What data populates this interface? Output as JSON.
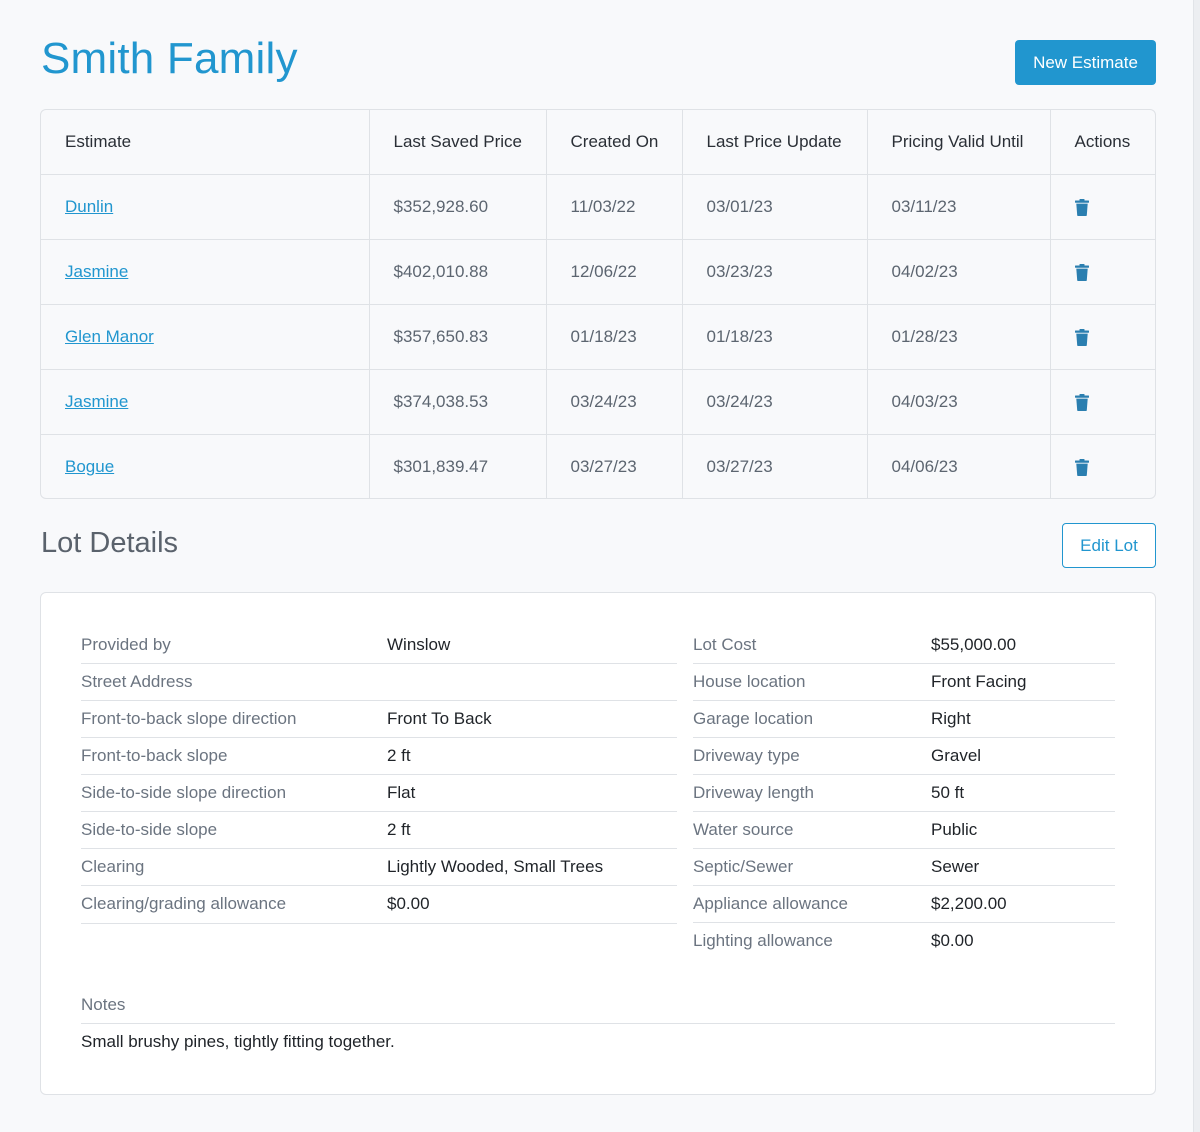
{
  "header": {
    "title": "Smith Family",
    "new_estimate_label": "New Estimate"
  },
  "estimates": {
    "columns": [
      "Estimate",
      "Last Saved Price",
      "Created On",
      "Last Price Update",
      "Pricing Valid Until",
      "Actions"
    ],
    "rows": [
      {
        "name": "Dunlin",
        "price": "$352,928.60",
        "created": "11/03/22",
        "updated": "03/01/23",
        "valid": "03/11/23"
      },
      {
        "name": "Jasmine",
        "price": "$402,010.88",
        "created": "12/06/22",
        "updated": "03/23/23",
        "valid": "04/02/23"
      },
      {
        "name": "Glen Manor",
        "price": "$357,650.83",
        "created": "01/18/23",
        "updated": "01/18/23",
        "valid": "01/28/23"
      },
      {
        "name": "Jasmine",
        "price": "$374,038.53",
        "created": "03/24/23",
        "updated": "03/24/23",
        "valid": "04/03/23"
      },
      {
        "name": "Bogue",
        "price": "$301,839.47",
        "created": "03/27/23",
        "updated": "03/27/23",
        "valid": "04/06/23"
      }
    ],
    "action_icon": "trash-icon"
  },
  "lot": {
    "title": "Lot Details",
    "edit_label": "Edit Lot",
    "left": [
      {
        "label": "Provided by",
        "value": "Winslow"
      },
      {
        "label": "Street Address",
        "value": ""
      },
      {
        "label": "Front-to-back slope direction",
        "value": "Front To Back"
      },
      {
        "label": "Front-to-back slope",
        "value": "2 ft"
      },
      {
        "label": "Side-to-side slope direction",
        "value": "Flat"
      },
      {
        "label": "Side-to-side slope",
        "value": "2 ft"
      },
      {
        "label": "Clearing",
        "value": "Lightly Wooded, Small Trees"
      },
      {
        "label": "Clearing/grading allowance",
        "value": "$0.00"
      }
    ],
    "right": [
      {
        "label": "Lot Cost",
        "value": "$55,000.00"
      },
      {
        "label": "House location",
        "value": "Front Facing"
      },
      {
        "label": "Garage location",
        "value": "Right"
      },
      {
        "label": "Driveway type",
        "value": "Gravel"
      },
      {
        "label": "Driveway length",
        "value": "50 ft"
      },
      {
        "label": "Water source",
        "value": "Public"
      },
      {
        "label": "Septic/Sewer",
        "value": "Sewer"
      },
      {
        "label": "Appliance allowance",
        "value": "$2,200.00"
      },
      {
        "label": "Lighting allowance",
        "value": "$0.00"
      }
    ],
    "notes_label": "Notes",
    "notes_text": "Small brushy pines, tightly fitting together."
  },
  "colors": {
    "accent": "#2196cf",
    "border": "#dfe2e6",
    "label_text": "#6b7480",
    "background": "#f8f9fb"
  }
}
